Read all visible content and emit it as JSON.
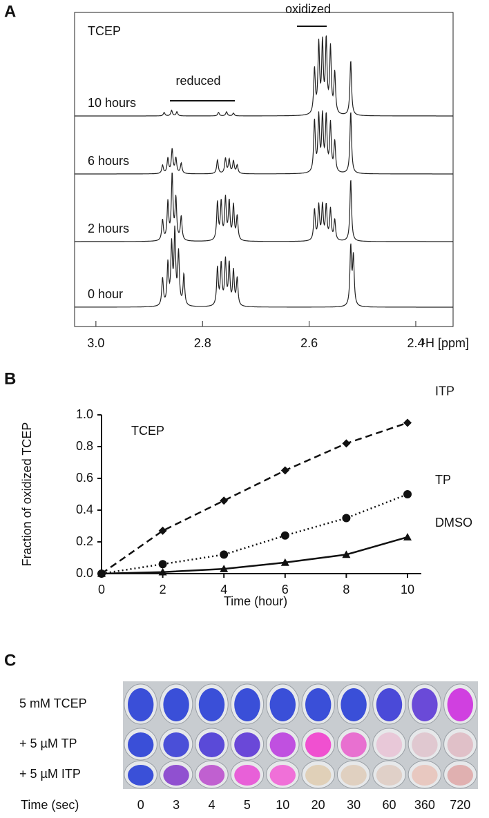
{
  "panel_a": {
    "label": "A",
    "title": "TCEP",
    "oxidized_label": "oxidized",
    "reduced_label": "reduced",
    "xlim": [
      3.04,
      2.33
    ],
    "xticks": [
      {
        "value": 3,
        "label": "3.0"
      },
      2.8,
      2.6,
      2.4
    ],
    "x_label": "¹H [ppm]",
    "traces": [
      {
        "label": "10 hours",
        "peaks": [
          [
            2.872,
            5
          ],
          [
            2.858,
            8
          ],
          [
            2.848,
            6
          ],
          [
            2.77,
            5
          ],
          [
            2.755,
            6
          ],
          [
            2.742,
            4
          ],
          [
            2.59,
            65
          ],
          [
            2.582,
            100
          ],
          [
            2.575,
            100
          ],
          [
            2.568,
            105
          ],
          [
            2.56,
            95
          ],
          [
            2.552,
            60
          ],
          [
            2.522,
            80
          ]
        ]
      },
      {
        "label": "6 hours",
        "peaks": [
          [
            2.875,
            12
          ],
          [
            2.865,
            22
          ],
          [
            2.857,
            35
          ],
          [
            2.85,
            22
          ],
          [
            2.84,
            15
          ],
          [
            2.772,
            20
          ],
          [
            2.757,
            22
          ],
          [
            2.75,
            20
          ],
          [
            2.742,
            18
          ],
          [
            2.735,
            12
          ],
          [
            2.59,
            75
          ],
          [
            2.582,
            80
          ],
          [
            2.575,
            80
          ],
          [
            2.568,
            80
          ],
          [
            2.56,
            70
          ],
          [
            2.552,
            45
          ],
          [
            2.522,
            90
          ]
        ]
      },
      {
        "label": "2 hours",
        "peaks": [
          [
            2.875,
            30
          ],
          [
            2.865,
            55
          ],
          [
            2.857,
            95
          ],
          [
            2.85,
            60
          ],
          [
            2.84,
            35
          ],
          [
            2.772,
            55
          ],
          [
            2.765,
            55
          ],
          [
            2.757,
            60
          ],
          [
            2.75,
            55
          ],
          [
            2.742,
            50
          ],
          [
            2.735,
            35
          ],
          [
            2.59,
            45
          ],
          [
            2.582,
            50
          ],
          [
            2.575,
            50
          ],
          [
            2.568,
            50
          ],
          [
            2.56,
            45
          ],
          [
            2.552,
            30
          ],
          [
            2.522,
            90
          ]
        ]
      },
      {
        "label": "0 hour",
        "peaks": [
          [
            2.875,
            40
          ],
          [
            2.865,
            60
          ],
          [
            2.858,
            85
          ],
          [
            2.852,
            105
          ],
          [
            2.845,
            75
          ],
          [
            2.835,
            45
          ],
          [
            2.772,
            55
          ],
          [
            2.765,
            60
          ],
          [
            2.757,
            65
          ],
          [
            2.75,
            60
          ],
          [
            2.742,
            50
          ],
          [
            2.735,
            40
          ],
          [
            2.522,
            85
          ],
          [
            2.517,
            70
          ]
        ]
      }
    ]
  },
  "chart_data": {
    "type": "line",
    "label": "B",
    "title": "TCEP",
    "x_label": "Time (hour)",
    "y_label": "Fraction of oxidized TCEP",
    "x": [
      0,
      2,
      4,
      6,
      8,
      10
    ],
    "xlim": [
      0,
      10
    ],
    "xticks": [
      0,
      2,
      4,
      6,
      8,
      10
    ],
    "ylim": [
      0,
      1
    ],
    "yticks": [
      {
        "value": 0,
        "label": "0.0"
      },
      0.2,
      0.4,
      0.6,
      0.8,
      {
        "value": 1,
        "label": "1.0"
      }
    ],
    "series": [
      {
        "name": "ITP",
        "color": "#111111",
        "linestyle": "dashed",
        "marker": "diamond",
        "values": [
          0,
          0.27,
          0.46,
          0.65,
          0.82,
          0.95
        ]
      },
      {
        "name": "TP",
        "color": "#111111",
        "linestyle": "dotted",
        "marker": "circle",
        "values": [
          0,
          0.06,
          0.12,
          0.24,
          0.35,
          0.5
        ]
      },
      {
        "name": "DMSO",
        "color": "#111111",
        "linestyle": "solid",
        "marker": "triangle",
        "values": [
          0,
          0.01,
          0.03,
          0.07,
          0.12,
          0.23
        ]
      }
    ]
  },
  "panel_c": {
    "label": "C",
    "time_label": "Time (sec)",
    "times": [
      0,
      3,
      4,
      5,
      10,
      20,
      30,
      60,
      360,
      720
    ],
    "rows": [
      {
        "label": "5 mM  TCEP",
        "colors": [
          "#3a4fd8",
          "#3a4fd8",
          "#3a4fd8",
          "#3a4fd8",
          "#3a4fd8",
          "#3a4fd8",
          "#3a4fd8",
          "#4a4ad8",
          "#6a4ad8",
          "#d040e0"
        ]
      },
      {
        "label": "+ 5 µM TP",
        "colors": [
          "#3a4fd8",
          "#4a4fd8",
          "#5a4ad8",
          "#6a48d8",
          "#c050e0",
          "#f050d0",
          "#e870d0",
          "#e8c8d8",
          "#e0c8d0",
          "#e0c0c8"
        ]
      },
      {
        "label": "+ 5 µM ITP",
        "colors": [
          "#3a50d8",
          "#9050d0",
          "#c060d0",
          "#e860d8",
          "#f070d8",
          "#e0d0b8",
          "#e0d0c0",
          "#e0d0c8",
          "#e8c8c0",
          "#e0b0b0"
        ]
      }
    ]
  }
}
